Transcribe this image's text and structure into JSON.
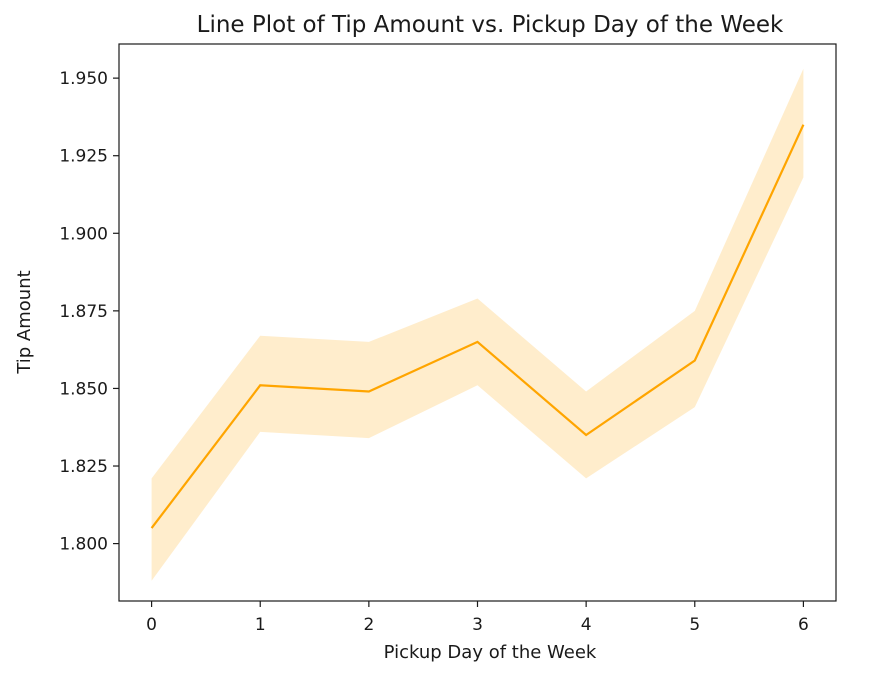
{
  "chart_data": {
    "type": "line",
    "title": "Line Plot of Tip Amount vs. Pickup Day of the Week",
    "xlabel": "Pickup Day of the Week",
    "ylabel": "Tip Amount",
    "x": [
      0,
      1,
      2,
      3,
      4,
      5,
      6
    ],
    "xticks": [
      "0",
      "1",
      "2",
      "3",
      "4",
      "5",
      "6"
    ],
    "xlim": [
      -0.3,
      6.3
    ],
    "yticks": [
      "1.800",
      "1.825",
      "1.850",
      "1.875",
      "1.900",
      "1.925",
      "1.950"
    ],
    "ylim": [
      1.7815,
      1.961
    ],
    "series": [
      {
        "values": [
          1.805,
          1.851,
          1.849,
          1.865,
          1.835,
          1.859,
          1.935
        ],
        "ci_lower": [
          1.788,
          1.836,
          1.834,
          1.851,
          1.821,
          1.844,
          1.918
        ],
        "ci_upper": [
          1.821,
          1.867,
          1.865,
          1.879,
          1.849,
          1.875,
          1.953
        ],
        "color": "#ffa500"
      }
    ],
    "grid": false,
    "legend": "none"
  }
}
